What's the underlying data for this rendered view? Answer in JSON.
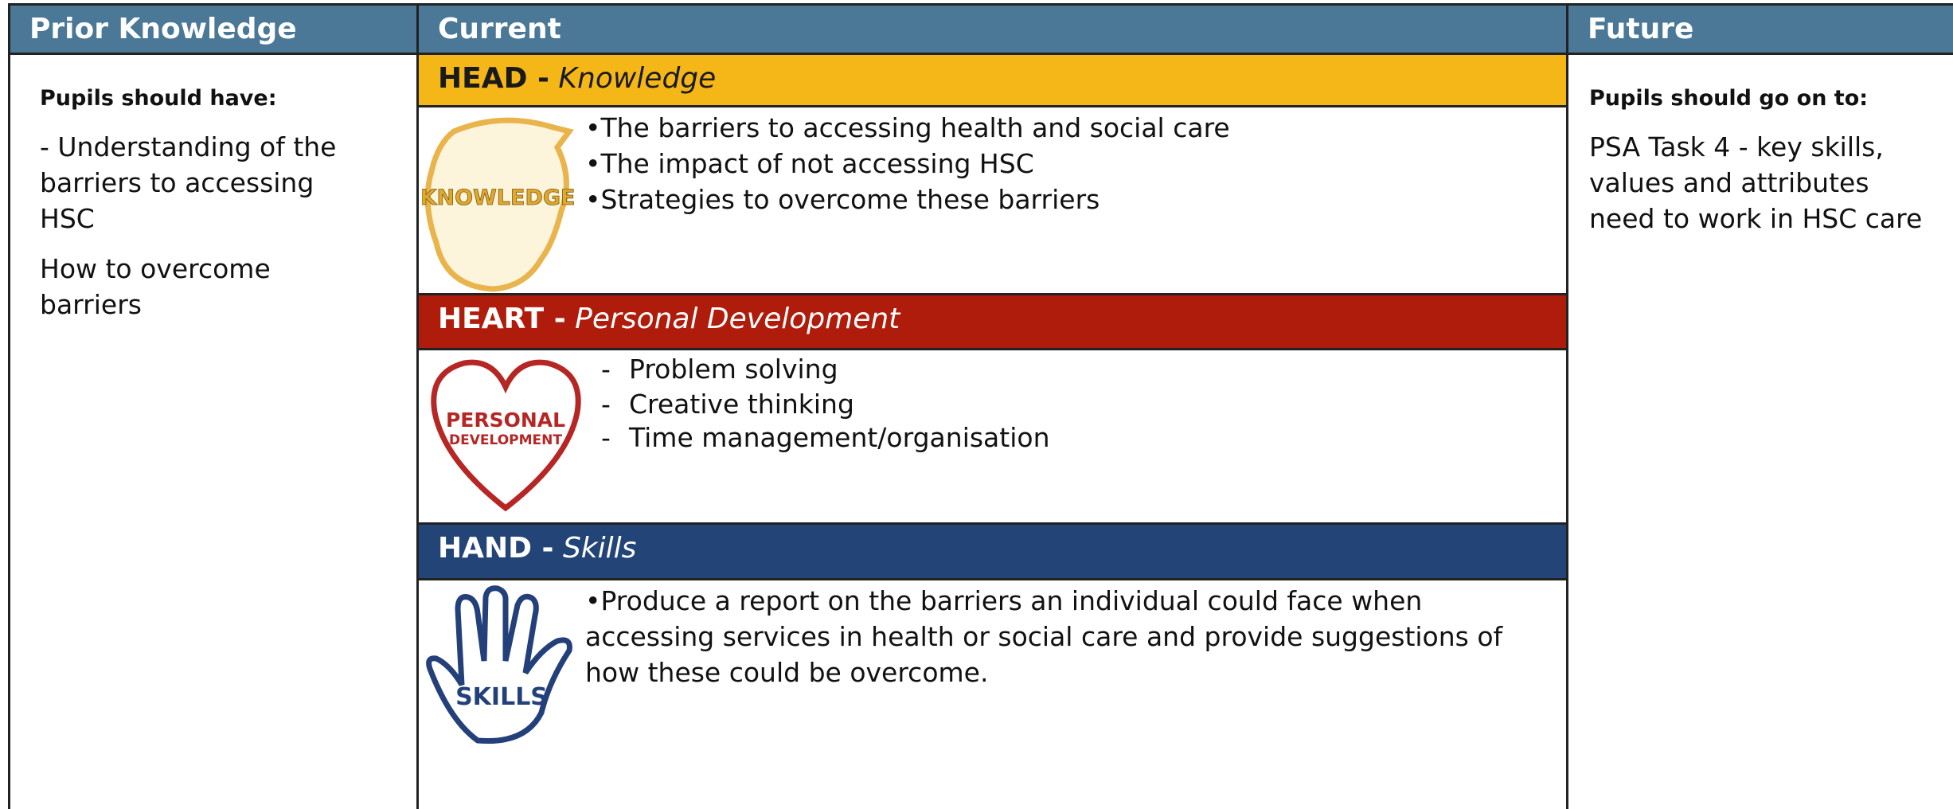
{
  "columns": [
    "Prior Knowledge",
    "Current",
    "Future"
  ],
  "prior": {
    "heading": "Pupils should have:",
    "items": [
      "- Understanding of the barriers to accessing HSC",
      "How to overcome barriers"
    ]
  },
  "sections": [
    {
      "label": "HEAD -",
      "subtitle": "Knowledge",
      "icon_text": "KNOWLEDGE",
      "items": [
        "•The barriers to accessing health and social care",
        "•The impact of not accessing HSC",
        "•Strategies to overcome these barriers"
      ]
    },
    {
      "label": "HEART -",
      "subtitle": "Personal Development",
      "icon_text": [
        "PERSONAL",
        "DEVELOPMENT"
      ],
      "items": [
        "-",
        "Problem solving",
        "-",
        "Creative thinking",
        "-",
        "Time management/organisation"
      ]
    },
    {
      "label": "HAND -",
      "subtitle": "Skills",
      "icon_text": "SKILLS",
      "items": [
        "•Produce a report on the barriers an individual could face when accessing services in health or social care and provide suggestions of how these could be overcome."
      ]
    }
  ],
  "future": {
    "heading": "Pupils should go on to:",
    "text": "PSA Task 4  - key skills, values and attributes need to work in HSC care"
  }
}
